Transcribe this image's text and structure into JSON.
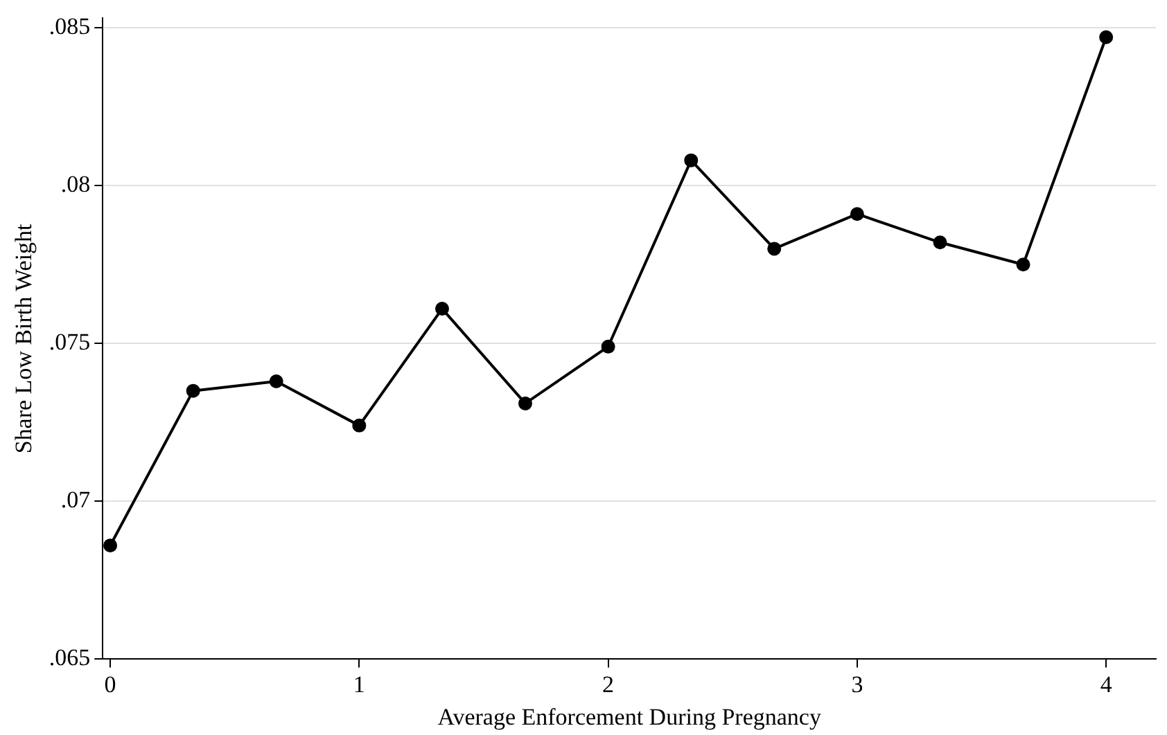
{
  "chart_data": {
    "type": "line",
    "xlabel": "Average Enforcement During Pregnancy",
    "ylabel": "Share Low Birth Weight",
    "x": [
      0,
      0.333,
      0.667,
      1,
      1.333,
      1.667,
      2,
      2.333,
      2.667,
      3,
      3.333,
      3.667,
      4
    ],
    "series": [
      {
        "color": "#000000",
        "values": [
          0.0686,
          0.0735,
          0.0738,
          0.0724,
          0.0761,
          0.0731,
          0.0749,
          0.0808,
          0.078,
          0.0791,
          0.0782,
          0.0775,
          0.0847
        ]
      }
    ],
    "xlim": [
      -0.03,
      4.2
    ],
    "ylim": [
      0.065,
      0.0853
    ],
    "xticks": [
      0,
      1,
      2,
      3,
      4
    ],
    "yticks": [
      {
        "value": 0.065,
        "label": ".065"
      },
      {
        "value": 0.07,
        "label": ".07"
      },
      {
        "value": 0.075,
        "label": ".075"
      },
      {
        "value": 0.08,
        "label": ".08"
      },
      {
        "value": 0.085,
        "label": ".085"
      }
    ],
    "grid": "y",
    "legend": false,
    "marker": "circle",
    "line_style": "solid"
  }
}
